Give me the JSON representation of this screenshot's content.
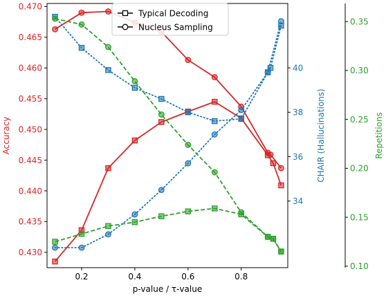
{
  "chart_data": {
    "type": "line",
    "xlabel": "p-value / τ-value",
    "x_ticks": [
      0.2,
      0.4,
      0.6,
      0.8
    ],
    "x_range": [
      0.07,
      0.975
    ],
    "axes": [
      {
        "id": "accuracy",
        "label": "Accuracy",
        "color": "#d62728",
        "side": "left",
        "range": [
          0.4275,
          0.4705
        ],
        "ticks": [
          0.43,
          0.435,
          0.44,
          0.445,
          0.45,
          0.455,
          0.46,
          0.465,
          0.47
        ],
        "tick_format": 3
      },
      {
        "id": "chair",
        "label": "CHAIR (Hallucinations)",
        "color": "#1f77b4",
        "side": "right",
        "range": [
          31.0,
          42.9
        ],
        "ticks": [
          34,
          36,
          38,
          40
        ],
        "tick_format": 0
      },
      {
        "id": "repetitions",
        "label": "Repetitions",
        "color": "#2ca02c",
        "side": "right-outer",
        "range": [
          0.0985,
          0.3685
        ],
        "ticks": [
          0.1,
          0.15,
          0.2,
          0.25,
          0.3,
          0.35
        ],
        "tick_format": 2
      }
    ],
    "series": [
      {
        "name": "Typical Decoding",
        "axis": "accuracy",
        "marker": "square",
        "dash": "solid",
        "x": [
          0.1,
          0.2,
          0.3,
          0.4,
          0.5,
          0.6,
          0.7,
          0.8,
          0.9,
          0.92,
          0.95
        ],
        "y": [
          0.4285,
          0.4336,
          0.4437,
          0.4482,
          0.4512,
          0.4529,
          0.4545,
          0.4518,
          0.4458,
          0.4445,
          0.4409
        ]
      },
      {
        "name": "Nucleus Sampling",
        "axis": "accuracy",
        "marker": "circle",
        "dash": "solid",
        "x": [
          0.1,
          0.2,
          0.3,
          0.4,
          0.5,
          0.6,
          0.7,
          0.8,
          0.9,
          0.91,
          0.95
        ],
        "y": [
          0.4663,
          0.469,
          0.4692,
          0.4674,
          0.4659,
          0.4613,
          0.4585,
          0.4537,
          0.4462,
          0.4459,
          0.4437
        ]
      },
      {
        "name": "Typical Decoding",
        "axis": "chair",
        "marker": "square",
        "dash": "dotted",
        "x": [
          0.1,
          0.2,
          0.3,
          0.4,
          0.5,
          0.6,
          0.7,
          0.8,
          0.9,
          0.91,
          0.95
        ],
        "y": [
          42.3,
          40.9,
          39.9,
          39.1,
          38.6,
          38.0,
          37.6,
          37.7,
          39.8,
          40.0,
          41.9
        ]
      },
      {
        "name": "Nucleus Sampling",
        "axis": "chair",
        "marker": "circle",
        "dash": "dotted",
        "x": [
          0.1,
          0.2,
          0.3,
          0.4,
          0.5,
          0.6,
          0.7,
          0.8,
          0.9,
          0.95
        ],
        "y": [
          31.9,
          31.9,
          32.5,
          33.4,
          34.5,
          35.7,
          37.0,
          38.1,
          39.8,
          42.1
        ]
      },
      {
        "name": "Typical Decoding",
        "axis": "repetitions",
        "marker": "square",
        "dash": "dashed",
        "x": [
          0.1,
          0.2,
          0.3,
          0.4,
          0.5,
          0.6,
          0.7,
          0.8,
          0.9,
          0.92,
          0.95
        ],
        "y": [
          0.125,
          0.133,
          0.141,
          0.145,
          0.151,
          0.156,
          0.159,
          0.153,
          0.13,
          0.128,
          0.115
        ]
      },
      {
        "name": "Nucleus Sampling",
        "axis": "repetitions",
        "marker": "circle",
        "dash": "dashed",
        "x": [
          0.1,
          0.2,
          0.3,
          0.4,
          0.5,
          0.6,
          0.7,
          0.8,
          0.9,
          0.92,
          0.95
        ],
        "y": [
          0.353,
          0.347,
          0.324,
          0.289,
          0.255,
          0.224,
          0.196,
          0.155,
          0.13,
          0.128,
          0.115
        ]
      }
    ],
    "legend": {
      "placement": "top-center",
      "entries": [
        {
          "label": "Typical Decoding",
          "marker": "square"
        },
        {
          "label": "Nucleus Sampling",
          "marker": "circle"
        }
      ]
    },
    "grid": false
  }
}
